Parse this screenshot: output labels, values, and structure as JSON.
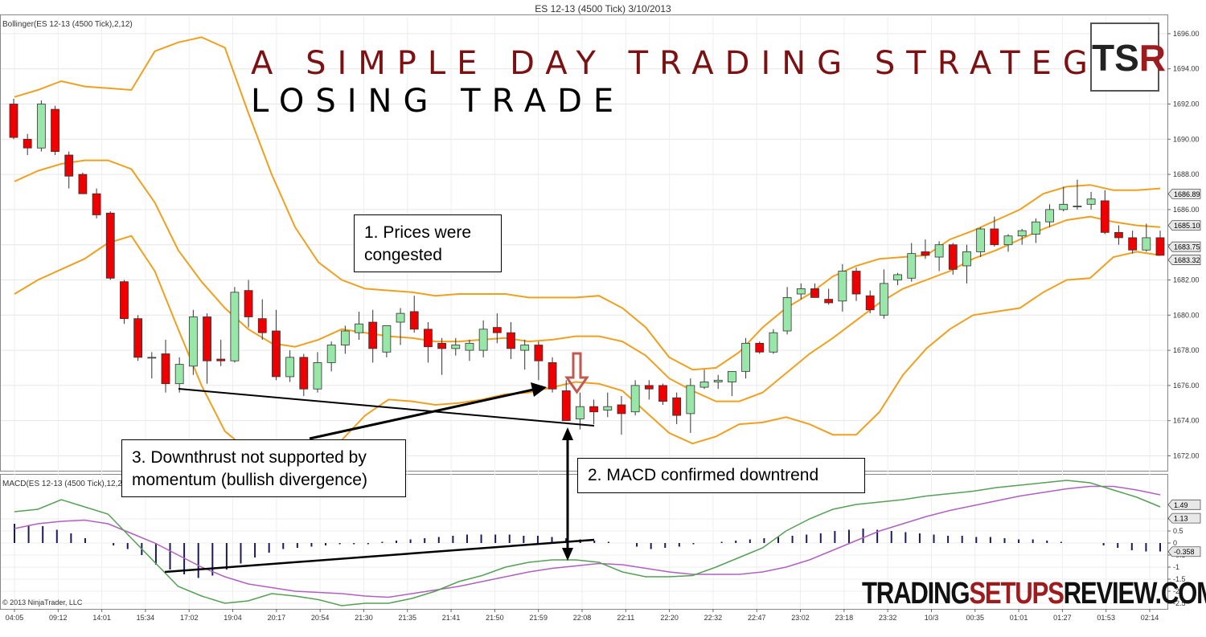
{
  "window_title": "ES 12-13 (4500 Tick)  3/10/2013",
  "price_pane_label": "Bollinger(ES 12-13 (4500 Tick),2,12)",
  "macd_pane_label": "MACD(ES 12-13 (4500 Tick),12,26,9)",
  "copyright": "© 2013 NinjaTrader, LLC",
  "headline": "A SIMPLE DAY TRADING STRATEGY",
  "subheadline": "LOSING TRADE",
  "logo": {
    "t": "TS",
    "r": "R"
  },
  "brand": {
    "part1": "TRADING",
    "part2": "SETUPS",
    "part3": "REVIEW.COM"
  },
  "annotations": {
    "a1_line1": "1. Prices were",
    "a1_line2": "congested",
    "a2": "2. MACD confirmed downtrend",
    "a3_line1": "3. Downthrust not supported by",
    "a3_line2": "momentum  (bullish divergence)"
  },
  "colors": {
    "bull": "#98e6a8",
    "bear": "#ee0000",
    "band": "#f0a020",
    "macd_line": "#55a055",
    "signal_line": "#b060c0",
    "histogram": "#1a1a5a",
    "title_red": "#7b1113",
    "entry_arrow": "#c05a50"
  },
  "chart_data": [
    {
      "type": "candlestick",
      "name": "price",
      "ylim": [
        1671.2,
        1697.0
      ],
      "yticks": [
        "1672.00",
        "1674.00",
        "1676.00",
        "1678.00",
        "1680.00",
        "1682.00",
        "1684.00",
        "1686.00",
        "1688.00",
        "1690.00",
        "1692.00",
        "1694.00",
        "1696.00"
      ],
      "xticks": [
        "04:05",
        "09:12",
        "14:01",
        "15:34",
        "17:02",
        "19:04",
        "20:17",
        "20:54",
        "21:30",
        "21:35",
        "21:41",
        "21:50",
        "21:59",
        "22:08",
        "22:11",
        "22:20",
        "22:32",
        "22:47",
        "23:02",
        "23:18",
        "23:32",
        "10/3",
        "00:35",
        "01:01",
        "01:27",
        "01:53",
        "02:14"
      ],
      "price_labels": [
        "1686.89",
        "1685.10",
        "1683.75",
        "1683.32"
      ],
      "candles": [
        [
          1692.0,
          1692.3,
          1690.0,
          1690.1
        ],
        [
          1690.0,
          1690.3,
          1689.1,
          1689.5
        ],
        [
          1689.5,
          1692.2,
          1689.3,
          1692.0
        ],
        [
          1691.7,
          1691.9,
          1689.1,
          1689.3
        ],
        [
          1689.1,
          1689.3,
          1687.2,
          1687.9
        ],
        [
          1688.0,
          1688.1,
          1687.0,
          1686.9
        ],
        [
          1686.9,
          1687.2,
          1685.5,
          1685.7
        ],
        [
          1685.8,
          1685.9,
          1682.0,
          1682.1
        ],
        [
          1681.9,
          1682.0,
          1679.5,
          1679.8
        ],
        [
          1679.8,
          1680.0,
          1677.4,
          1677.6
        ],
        [
          1677.6,
          1677.9,
          1676.4,
          1677.6
        ],
        [
          1677.8,
          1678.6,
          1675.6,
          1676.1
        ],
        [
          1676.1,
          1677.6,
          1675.6,
          1677.2
        ],
        [
          1677.1,
          1680.3,
          1676.6,
          1679.9
        ],
        [
          1679.9,
          1680.1,
          1676.1,
          1677.4
        ],
        [
          1677.5,
          1678.6,
          1677.1,
          1677.4
        ],
        [
          1677.4,
          1681.6,
          1677.3,
          1681.3
        ],
        [
          1681.4,
          1682.0,
          1679.3,
          1679.9
        ],
        [
          1679.8,
          1680.9,
          1678.6,
          1679.0
        ],
        [
          1679.1,
          1680.3,
          1676.3,
          1676.5
        ],
        [
          1676.5,
          1678.0,
          1676.2,
          1677.6
        ],
        [
          1677.6,
          1677.8,
          1675.4,
          1675.8
        ],
        [
          1675.8,
          1677.9,
          1675.6,
          1677.3
        ],
        [
          1677.3,
          1678.5,
          1676.8,
          1678.3
        ],
        [
          1678.3,
          1679.4,
          1677.8,
          1679.1
        ],
        [
          1679.0,
          1680.2,
          1678.6,
          1679.5
        ],
        [
          1679.6,
          1680.3,
          1677.3,
          1678.1
        ],
        [
          1677.9,
          1679.3,
          1677.6,
          1679.4
        ],
        [
          1679.6,
          1680.4,
          1678.3,
          1680.1
        ],
        [
          1680.2,
          1681.1,
          1679.0,
          1679.2
        ],
        [
          1679.2,
          1679.6,
          1677.3,
          1678.2
        ],
        [
          1678.4,
          1678.7,
          1676.6,
          1678.1
        ],
        [
          1678.1,
          1678.7,
          1677.7,
          1678.3
        ],
        [
          1678.0,
          1678.6,
          1677.4,
          1678.4
        ],
        [
          1678.0,
          1679.7,
          1677.6,
          1679.2
        ],
        [
          1679.3,
          1680.1,
          1678.4,
          1679.0
        ],
        [
          1679.0,
          1679.6,
          1677.5,
          1678.1
        ],
        [
          1678.0,
          1678.6,
          1676.9,
          1678.3
        ],
        [
          1678.3,
          1678.5,
          1676.3,
          1677.4
        ],
        [
          1677.3,
          1677.6,
          1675.6,
          1675.8
        ],
        [
          1675.7,
          1676.3,
          1674.1,
          1674.0
        ],
        [
          1674.1,
          1675.6,
          1673.5,
          1674.8
        ],
        [
          1674.8,
          1675.2,
          1673.8,
          1674.5
        ],
        [
          1674.6,
          1675.6,
          1674.2,
          1674.8
        ],
        [
          1674.9,
          1675.4,
          1673.2,
          1674.4
        ],
        [
          1674.5,
          1676.3,
          1674.3,
          1676.0
        ],
        [
          1676.0,
          1676.3,
          1675.2,
          1675.8
        ],
        [
          1676.0,
          1676.1,
          1674.9,
          1675.1
        ],
        [
          1675.3,
          1675.6,
          1673.8,
          1674.3
        ],
        [
          1674.4,
          1676.4,
          1673.3,
          1676.0
        ],
        [
          1675.9,
          1676.9,
          1675.8,
          1676.2
        ],
        [
          1676.2,
          1676.6,
          1675.8,
          1676.3
        ],
        [
          1676.2,
          1676.7,
          1675.4,
          1676.8
        ],
        [
          1676.8,
          1678.7,
          1676.4,
          1678.4
        ],
        [
          1678.4,
          1678.5,
          1677.8,
          1677.9
        ],
        [
          1677.9,
          1679.2,
          1677.8,
          1679.0
        ],
        [
          1679.1,
          1681.6,
          1678.9,
          1681.0
        ],
        [
          1681.2,
          1681.8,
          1680.9,
          1681.5
        ],
        [
          1681.5,
          1681.8,
          1681.0,
          1681.0
        ],
        [
          1680.9,
          1681.5,
          1680.6,
          1680.7
        ],
        [
          1680.8,
          1682.9,
          1680.2,
          1682.5
        ],
        [
          1682.5,
          1682.7,
          1680.8,
          1681.2
        ],
        [
          1681.1,
          1681.4,
          1680.1,
          1680.3
        ],
        [
          1680.0,
          1682.6,
          1679.8,
          1681.8
        ],
        [
          1682.0,
          1682.4,
          1681.7,
          1682.3
        ],
        [
          1682.1,
          1684.1,
          1681.9,
          1683.5
        ],
        [
          1683.6,
          1684.3,
          1683.2,
          1683.4
        ],
        [
          1683.3,
          1684.2,
          1682.5,
          1684.0
        ],
        [
          1684.0,
          1684.1,
          1682.3,
          1682.6
        ],
        [
          1682.8,
          1684.0,
          1681.8,
          1683.6
        ],
        [
          1683.6,
          1685.0,
          1683.3,
          1684.9
        ],
        [
          1684.9,
          1685.6,
          1683.9,
          1684.0
        ],
        [
          1684.0,
          1684.6,
          1683.6,
          1684.5
        ],
        [
          1684.5,
          1684.9,
          1684.0,
          1684.8
        ],
        [
          1684.6,
          1685.5,
          1684.1,
          1685.3
        ],
        [
          1685.3,
          1686.3,
          1685.0,
          1686.0
        ],
        [
          1686.0,
          1687.3,
          1685.9,
          1686.3
        ],
        [
          1686.2,
          1687.7,
          1686.0,
          1686.2
        ],
        [
          1686.3,
          1687.0,
          1686.0,
          1686.6
        ],
        [
          1686.5,
          1687.1,
          1684.6,
          1684.7
        ],
        [
          1684.7,
          1685.1,
          1684.0,
          1684.4
        ],
        [
          1684.4,
          1684.8,
          1683.5,
          1683.7
        ],
        [
          1683.7,
          1685.2,
          1683.6,
          1684.4
        ],
        [
          1684.4,
          1684.8,
          1683.5,
          1683.4
        ]
      ],
      "bb_upper": [
        1692.4,
        1692.8,
        1693.3,
        1693.0,
        1692.9,
        1692.8,
        1695.0,
        1695.5,
        1695.8,
        1695.2,
        1691.5,
        1688.0,
        1685.0,
        1683.0,
        1682.0,
        1681.5,
        1681.4,
        1681.3,
        1681.1,
        1681.2,
        1681.2,
        1681.2,
        1681.0,
        1681.0,
        1681.0,
        1681.1,
        1680.4,
        1679.3,
        1677.6,
        1676.9,
        1677.0,
        1677.9,
        1679.3,
        1680.4,
        1681.2,
        1682.2,
        1682.8,
        1683.2,
        1683.3,
        1683.4,
        1684.3,
        1684.8,
        1685.4,
        1686.0,
        1686.9,
        1687.3,
        1687.4,
        1687.1,
        1687.1,
        1687.2
      ],
      "bb_middle": [
        1687.6,
        1688.2,
        1688.6,
        1688.8,
        1688.8,
        1688.3,
        1686.4,
        1683.7,
        1681.9,
        1680.4,
        1679.2,
        1678.4,
        1678.2,
        1678.6,
        1679.2,
        1679.0,
        1678.8,
        1678.7,
        1678.5,
        1678.5,
        1678.6,
        1678.7,
        1678.5,
        1678.6,
        1678.8,
        1678.8,
        1678.5,
        1677.7,
        1676.4,
        1675.7,
        1675.1,
        1675.1,
        1675.6,
        1676.7,
        1677.8,
        1678.7,
        1679.7,
        1680.7,
        1681.5,
        1682.0,
        1682.5,
        1683.2,
        1683.7,
        1684.3,
        1684.9,
        1685.4,
        1685.6,
        1685.3,
        1685.1,
        1685.0
      ],
      "bb_lower": [
        1681.2,
        1682.0,
        1682.6,
        1683.2,
        1684.1,
        1684.5,
        1682.5,
        1679.2,
        1676.0,
        1673.4,
        1672.3,
        1671.6,
        1671.0,
        1671.4,
        1672.9,
        1674.3,
        1675.2,
        1675.1,
        1674.9,
        1675.0,
        1675.2,
        1675.5,
        1675.6,
        1675.9,
        1676.2,
        1676.1,
        1675.7,
        1674.5,
        1673.3,
        1672.7,
        1673.1,
        1673.8,
        1673.9,
        1674.2,
        1673.8,
        1673.2,
        1673.2,
        1674.5,
        1676.6,
        1678.1,
        1679.2,
        1680.0,
        1680.2,
        1680.4,
        1681.3,
        1682.0,
        1682.1,
        1683.3,
        1683.6,
        1683.4
      ]
    },
    {
      "type": "line+bar",
      "name": "macd",
      "ylim": [
        -2.7,
        2.8
      ],
      "yticks": [
        "-2.5",
        "-2",
        "-1.5",
        "-1",
        "-0.5",
        "0",
        "0.5",
        "1"
      ],
      "value_labels": [
        "1.49",
        "1.13",
        "-0.358"
      ],
      "macd": [
        1.3,
        1.4,
        1.8,
        1.5,
        1.2,
        0.2,
        -0.8,
        -1.8,
        -2.2,
        -2.5,
        -2.4,
        -2.1,
        -2.2,
        -2.35,
        -2.6,
        -2.5,
        -2.5,
        -2.3,
        -2.0,
        -1.6,
        -1.35,
        -1.0,
        -0.8,
        -0.7,
        -0.7,
        -0.8,
        -1.2,
        -1.4,
        -1.4,
        -1.35,
        -1.0,
        -0.6,
        -0.2,
        0.5,
        1.0,
        1.4,
        1.6,
        1.7,
        1.8,
        1.95,
        2.05,
        2.15,
        2.3,
        2.4,
        2.5,
        2.6,
        2.5,
        2.2,
        1.9,
        1.5
      ],
      "signal": [
        0.6,
        0.8,
        0.9,
        0.95,
        0.8,
        0.4,
        0.0,
        -0.5,
        -1.0,
        -1.4,
        -1.7,
        -1.85,
        -2.0,
        -2.05,
        -2.1,
        -2.2,
        -2.25,
        -2.1,
        -1.95,
        -1.8,
        -1.6,
        -1.4,
        -1.2,
        -1.05,
        -0.95,
        -0.85,
        -0.9,
        -1.05,
        -1.2,
        -1.3,
        -1.3,
        -1.3,
        -1.2,
        -1.0,
        -0.7,
        -0.3,
        0.1,
        0.5,
        0.8,
        1.1,
        1.35,
        1.55,
        1.75,
        1.95,
        2.1,
        2.25,
        2.35,
        2.35,
        2.2,
        2.0
      ],
      "histogram": [
        0.8,
        0.75,
        0.7,
        0.55,
        0.4,
        0.2,
        0.0,
        -0.1,
        -0.25,
        -0.5,
        -0.9,
        -1.1,
        -1.3,
        -1.45,
        -1.35,
        -1.1,
        -0.85,
        -0.6,
        -0.4,
        -0.25,
        -0.2,
        -0.15,
        -0.1,
        -0.05,
        -0.05,
        -0.05,
        0.05,
        0.1,
        0.15,
        0.2,
        0.25,
        0.3,
        0.35,
        0.35,
        0.35,
        0.35,
        0.3,
        0.3,
        0.25,
        0.2,
        0.15,
        0.1,
        0.05,
        0.0,
        -0.15,
        -0.25,
        -0.2,
        -0.15,
        -0.05,
        0.0,
        0.05,
        0.1,
        0.15,
        0.2,
        0.25,
        0.3,
        0.35,
        0.4,
        0.5,
        0.55,
        0.6,
        0.55,
        0.5,
        0.45,
        0.4,
        0.35,
        0.3,
        0.3,
        0.25,
        0.25,
        0.2,
        0.15,
        0.15,
        0.1,
        0.05,
        0.0,
        0.0,
        -0.1,
        -0.2,
        -0.3,
        -0.35,
        -0.35
      ]
    }
  ]
}
